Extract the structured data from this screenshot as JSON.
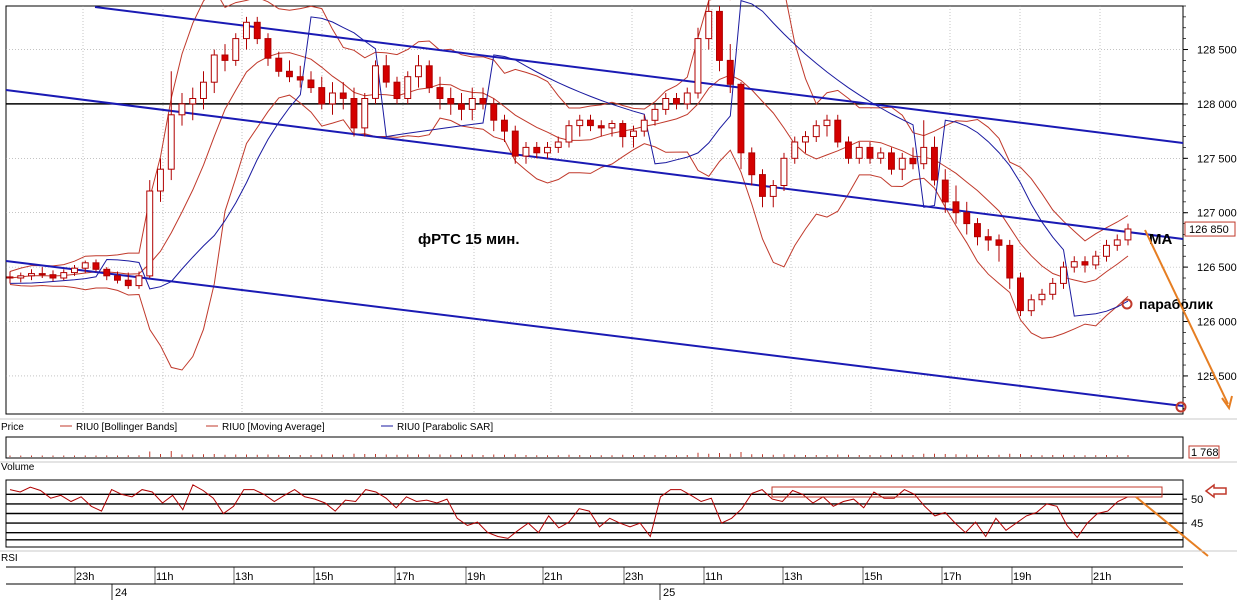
{
  "chart_data": {
    "type": "candlestick",
    "title": "фРТС   15 мин.",
    "annotations": {
      "ma": "MA",
      "parabolic": "параболик"
    },
    "price_panel": {
      "label": "Price",
      "ylim": [
        125150,
        128900
      ],
      "yticks": [
        "128 500",
        "128 000",
        "127 500",
        "127 000",
        "126 500",
        "126 000",
        "125 500"
      ],
      "ytick_values": [
        128500,
        128000,
        127500,
        127000,
        126500,
        126000,
        125500
      ],
      "last_price": "126 850",
      "horizontal_level": 128000,
      "legend": [
        {
          "name": "RIU0 [Bollinger Bands]",
          "color": "#c0392b"
        },
        {
          "name": "RIU0 [Moving Average]",
          "color": "#c0392b"
        },
        {
          "name": "RIU0 [Parabolic SAR]",
          "color": "#1a1aa0"
        }
      ]
    },
    "volume_panel": {
      "label": "Volume",
      "last_value": "1 768"
    },
    "rsi_panel": {
      "label": "RSI",
      "ylim": [
        40,
        54
      ],
      "yticks": [
        "50",
        "45"
      ],
      "ytick_values": [
        50,
        45
      ]
    },
    "time_axis": {
      "hour_labels": [
        "23h",
        "11h",
        "13h",
        "15h",
        "17h",
        "19h",
        "21h",
        "23h",
        "11h",
        "13h",
        "15h",
        "17h",
        "19h",
        "21h"
      ],
      "day_labels": [
        "24",
        "25"
      ]
    },
    "candles": [
      [
        126410,
        126460,
        126350,
        126400
      ],
      [
        126400,
        126450,
        126360,
        126420
      ],
      [
        126420,
        126480,
        126380,
        126440
      ],
      [
        126440,
        126500,
        126400,
        126430
      ],
      [
        126430,
        126470,
        126370,
        126400
      ],
      [
        126400,
        126480,
        126380,
        126450
      ],
      [
        126450,
        126520,
        126420,
        126490
      ],
      [
        126490,
        126560,
        126450,
        126540
      ],
      [
        126540,
        126570,
        126460,
        126480
      ],
      [
        126480,
        126500,
        126380,
        126420
      ],
      [
        126420,
        126460,
        126350,
        126380
      ],
      [
        126380,
        126450,
        126300,
        126330
      ],
      [
        126330,
        126460,
        126300,
        126420
      ],
      [
        126420,
        127300,
        126400,
        127200
      ],
      [
        127200,
        127500,
        127100,
        127400
      ],
      [
        127400,
        128300,
        127300,
        127900
      ],
      [
        127900,
        128100,
        127800,
        128000
      ],
      [
        128000,
        128150,
        127850,
        128050
      ],
      [
        128050,
        128300,
        127950,
        128200
      ],
      [
        128200,
        128500,
        128100,
        128450
      ],
      [
        128450,
        128550,
        128300,
        128400
      ],
      [
        128400,
        128650,
        128350,
        128600
      ],
      [
        128600,
        128800,
        128500,
        128750
      ],
      [
        128750,
        128800,
        128550,
        128600
      ],
      [
        128600,
        128650,
        128350,
        128420
      ],
      [
        128420,
        128480,
        128250,
        128300
      ],
      [
        128300,
        128400,
        128200,
        128250
      ],
      [
        128250,
        128350,
        128150,
        128220
      ],
      [
        128220,
        128300,
        128100,
        128150
      ],
      [
        128150,
        128250,
        127950,
        128000
      ],
      [
        128000,
        128200,
        127900,
        128100
      ],
      [
        128100,
        128200,
        127950,
        128050
      ],
      [
        128050,
        128150,
        127700,
        127780
      ],
      [
        127780,
        128100,
        127700,
        128050
      ],
      [
        128050,
        128400,
        128000,
        128350
      ],
      [
        128350,
        128450,
        128150,
        128200
      ],
      [
        128200,
        128250,
        128000,
        128050
      ],
      [
        128050,
        128300,
        128000,
        128250
      ],
      [
        128250,
        128450,
        128150,
        128350
      ],
      [
        128350,
        128400,
        128100,
        128150
      ],
      [
        128150,
        128250,
        127950,
        128050
      ],
      [
        128050,
        128150,
        127900,
        128000
      ],
      [
        128000,
        128100,
        127850,
        127950
      ],
      [
        127950,
        128150,
        127850,
        128050
      ],
      [
        128050,
        128150,
        127950,
        128000
      ],
      [
        128000,
        128050,
        127750,
        127850
      ],
      [
        127850,
        127900,
        127650,
        127750
      ],
      [
        127750,
        127800,
        127450,
        127520
      ],
      [
        127520,
        127650,
        127450,
        127600
      ],
      [
        127600,
        127650,
        127500,
        127550
      ],
      [
        127550,
        127650,
        127500,
        127600
      ],
      [
        127600,
        127700,
        127550,
        127650
      ],
      [
        127650,
        127850,
        127600,
        127800
      ],
      [
        127800,
        127900,
        127700,
        127850
      ],
      [
        127850,
        127900,
        127750,
        127800
      ],
      [
        127800,
        127850,
        127700,
        127780
      ],
      [
        127780,
        127850,
        127700,
        127820
      ],
      [
        127820,
        127850,
        127600,
        127700
      ],
      [
        127700,
        127800,
        127600,
        127750
      ],
      [
        127750,
        127900,
        127700,
        127850
      ],
      [
        127850,
        128000,
        127800,
        127950
      ],
      [
        127950,
        128100,
        127900,
        128050
      ],
      [
        128050,
        128100,
        127950,
        128000
      ],
      [
        128000,
        128150,
        127950,
        128100
      ],
      [
        128100,
        128700,
        128050,
        128600
      ],
      [
        128600,
        128950,
        128500,
        128850
      ],
      [
        128850,
        128900,
        128300,
        128400
      ],
      [
        128400,
        128550,
        128100,
        128180
      ],
      [
        128180,
        128200,
        127400,
        127550
      ],
      [
        127550,
        127600,
        127250,
        127350
      ],
      [
        127350,
        127400,
        127050,
        127150
      ],
      [
        127150,
        127300,
        127050,
        127250
      ],
      [
        127250,
        127550,
        127200,
        127500
      ],
      [
        127500,
        127700,
        127450,
        127650
      ],
      [
        127650,
        127750,
        127550,
        127700
      ],
      [
        127700,
        127850,
        127650,
        127800
      ],
      [
        127800,
        127900,
        127700,
        127850
      ],
      [
        127850,
        127900,
        127600,
        127650
      ],
      [
        127650,
        127700,
        127450,
        127500
      ],
      [
        127500,
        127650,
        127450,
        127600
      ],
      [
        127600,
        127650,
        127450,
        127500
      ],
      [
        127500,
        127600,
        127450,
        127550
      ],
      [
        127550,
        127600,
        127350,
        127400
      ],
      [
        127400,
        127550,
        127300,
        127500
      ],
      [
        127500,
        127600,
        127400,
        127450
      ],
      [
        127450,
        127850,
        127400,
        127600
      ],
      [
        127600,
        127700,
        127250,
        127300
      ],
      [
        127300,
        127400,
        127000,
        127100
      ],
      [
        127100,
        127250,
        126900,
        127000
      ],
      [
        127000,
        127100,
        126800,
        126900
      ],
      [
        126900,
        126950,
        126700,
        126780
      ],
      [
        126780,
        126850,
        126650,
        126750
      ],
      [
        126750,
        126800,
        126550,
        126700
      ],
      [
        126700,
        126750,
        126300,
        126400
      ],
      [
        126400,
        126450,
        126050,
        126100
      ],
      [
        126100,
        126250,
        126050,
        126200
      ],
      [
        126200,
        126300,
        126150,
        126250
      ],
      [
        126250,
        126400,
        126200,
        126350
      ],
      [
        126350,
        126550,
        126300,
        126500
      ],
      [
        126500,
        126600,
        126450,
        126550
      ],
      [
        126550,
        126600,
        126450,
        126520
      ],
      [
        126520,
        126650,
        126480,
        126600
      ],
      [
        126600,
        126750,
        126550,
        126700
      ],
      [
        126700,
        126800,
        126650,
        126750
      ],
      [
        126750,
        126900,
        126700,
        126850
      ]
    ],
    "rsi_series": [
      52,
      51.5,
      52.5,
      51.8,
      50.2,
      50.8,
      49.5,
      50.5,
      48.5,
      47.5,
      52,
      51,
      50.5,
      52,
      51.5,
      49.2,
      50.8,
      47.8,
      53,
      51.8,
      50.2,
      47,
      48.5,
      52,
      52,
      51,
      49.5,
      50.8,
      52,
      50.5,
      50,
      49.2,
      47.5,
      49.8,
      49.5,
      52,
      51.5,
      50.2,
      48.2,
      50.5,
      49.5,
      49.8,
      49.2,
      50,
      46,
      44.5,
      45.2,
      43,
      42.2,
      41.8,
      43.5,
      45,
      43,
      46.5,
      44,
      45.2,
      48,
      47.5,
      44.2,
      46,
      45,
      44.2,
      45,
      42.2,
      50.5,
      52,
      52,
      50.8,
      49.5,
      50.2,
      45,
      46,
      48,
      51.2,
      52,
      50,
      49.5,
      51.8,
      51,
      49.2,
      50.5,
      48.5,
      49.5,
      50,
      48.2,
      51.5,
      50.2,
      50.2,
      52,
      51,
      48.5,
      46.5,
      47.2,
      45,
      43,
      45.2,
      42.2,
      46,
      43.5,
      45,
      46.5,
      47.2,
      49,
      48.5,
      44.5,
      42,
      45,
      47,
      47.5,
      49.5,
      50.5
    ]
  }
}
